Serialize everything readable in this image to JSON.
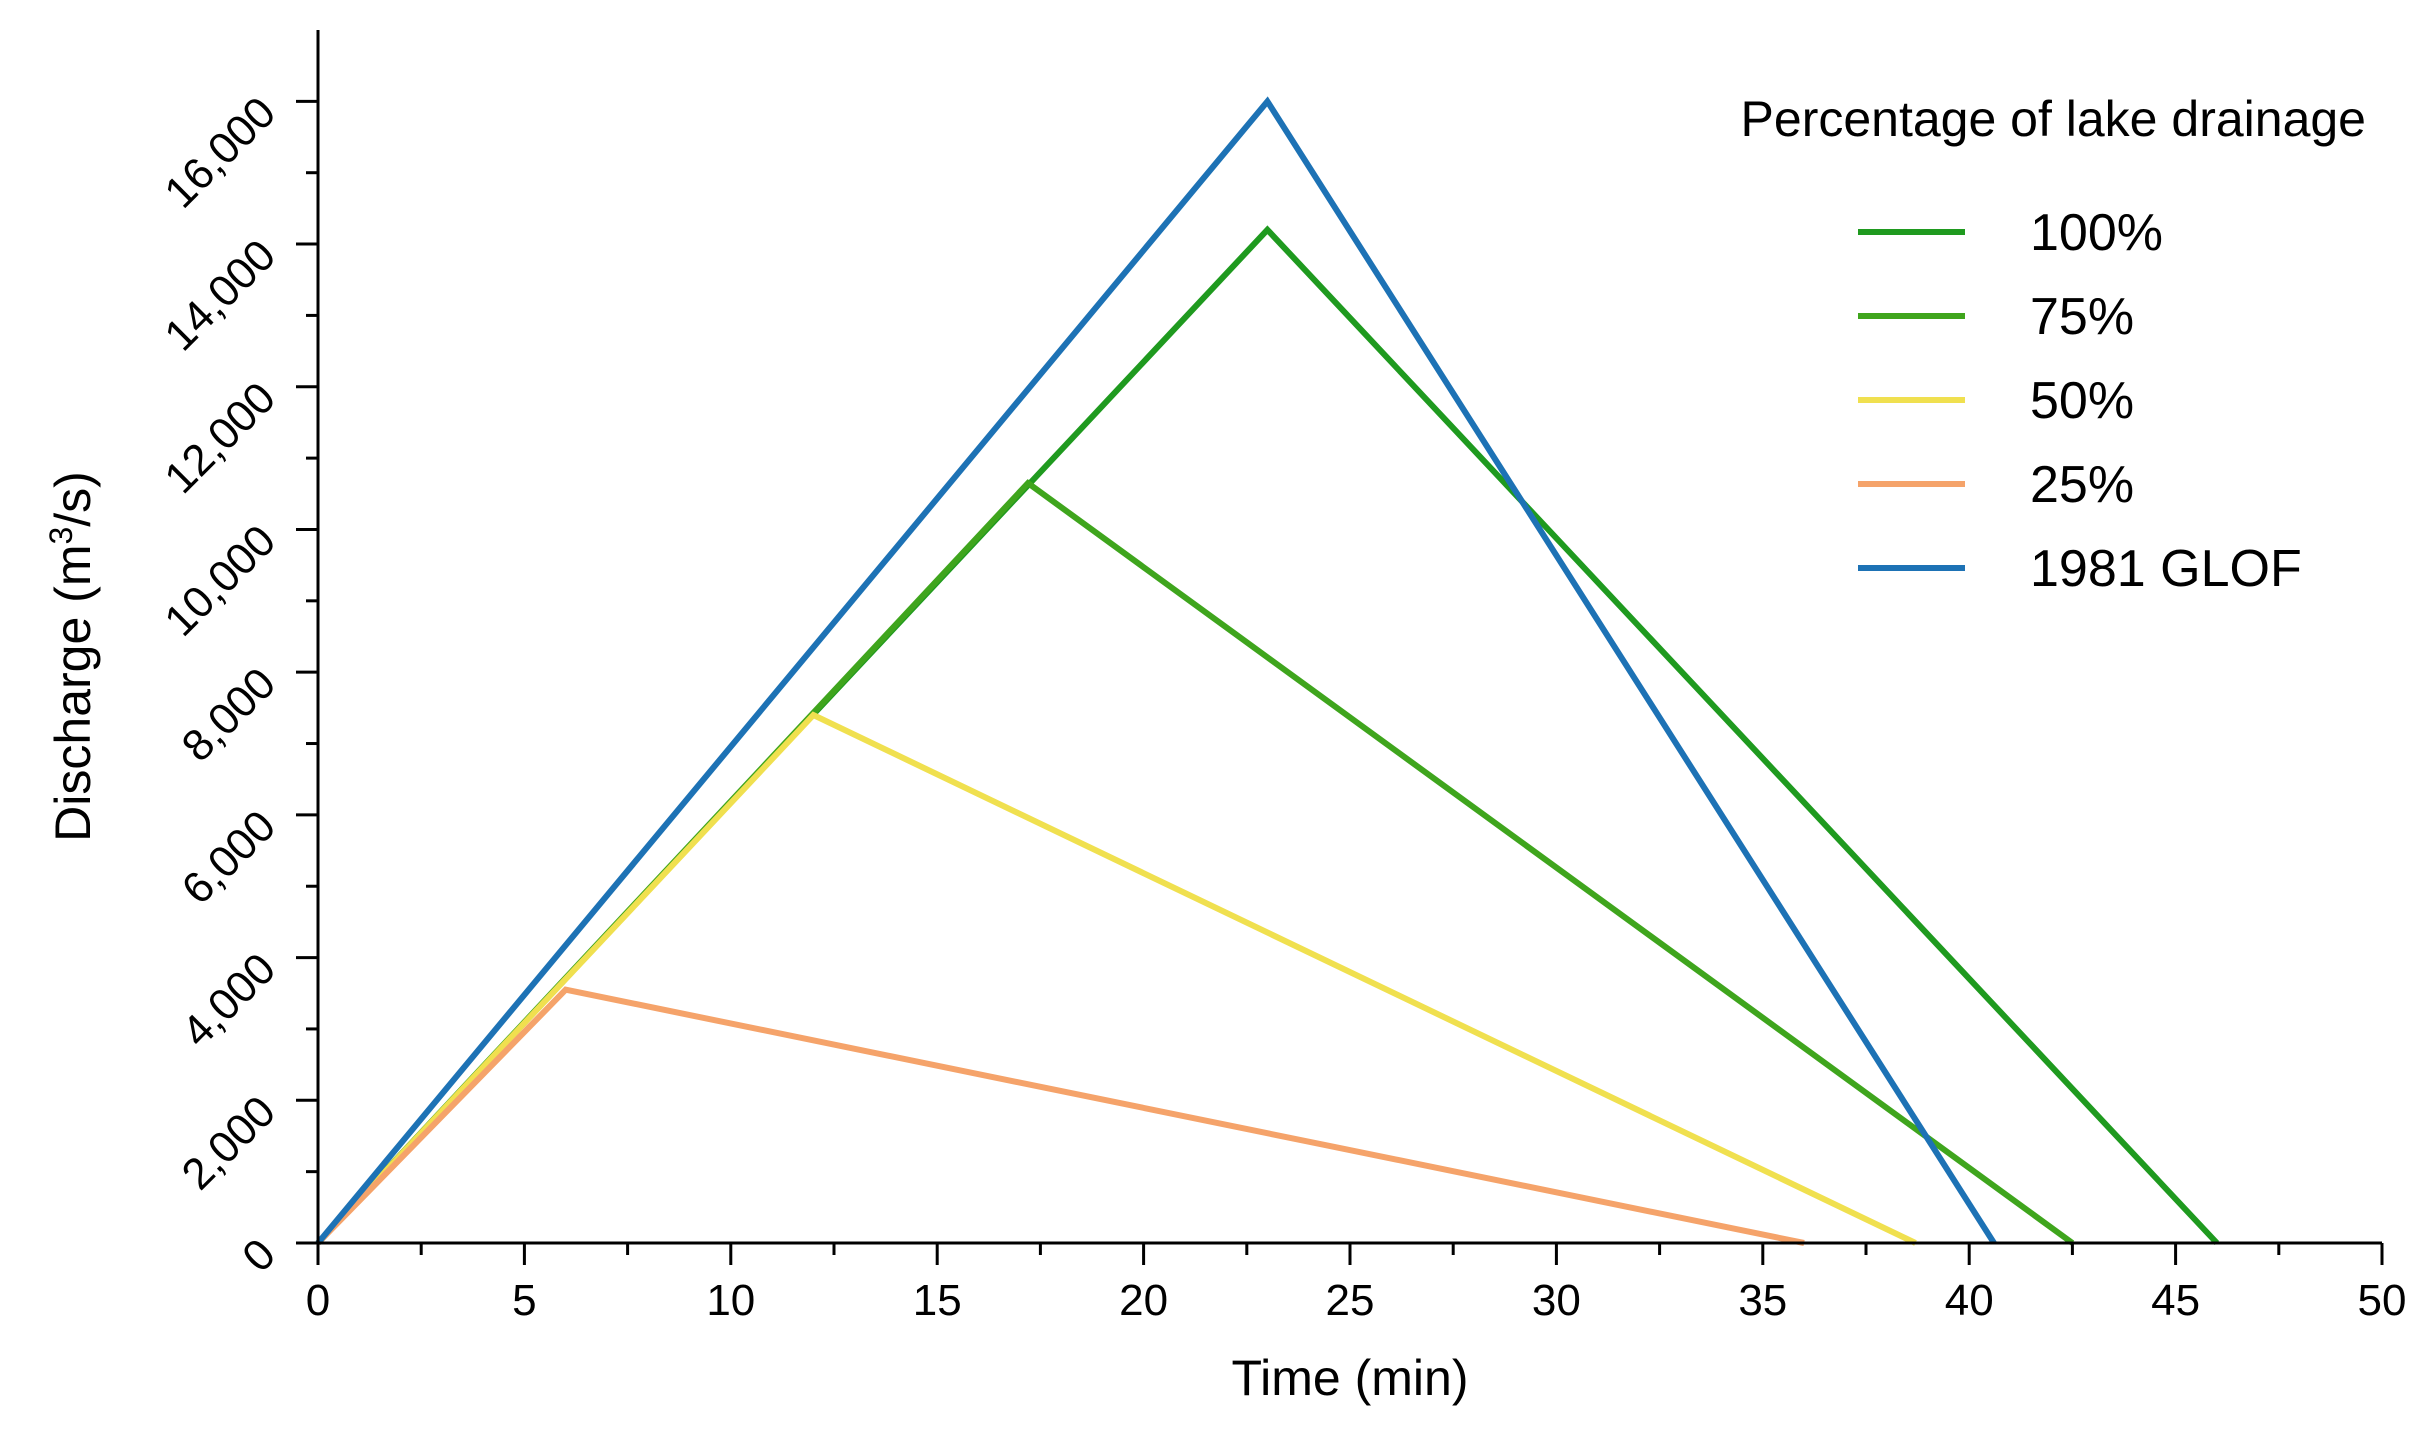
{
  "chart_data": {
    "type": "line",
    "title": "",
    "xlabel": "Time (min)",
    "ylabel_prefix": "Discharge (m",
    "ylabel_sup": "3",
    "ylabel_suffix": "/s)",
    "xlim": [
      0,
      50
    ],
    "ylim": [
      0,
      17000
    ],
    "x_ticks": [
      0,
      5,
      10,
      15,
      20,
      25,
      30,
      35,
      40,
      45,
      50
    ],
    "x_tick_labels": [
      "0",
      "5",
      "10",
      "15",
      "20",
      "25",
      "30",
      "35",
      "40",
      "45",
      "50"
    ],
    "y_ticks": [
      0,
      2000,
      4000,
      6000,
      8000,
      10000,
      12000,
      14000,
      16000
    ],
    "y_tick_labels": [
      "0",
      "2,000",
      "4,000",
      "6,000",
      "8,000",
      "10,000",
      "12,000",
      "14,000",
      "16,000"
    ],
    "grid": false,
    "legend_title": "Percentage of lake drainage",
    "legend_position": "top-right",
    "series": [
      {
        "name": "100%",
        "color": "#1f9a1f",
        "x": [
          0,
          23,
          46
        ],
        "y": [
          0,
          14200,
          0
        ]
      },
      {
        "name": "75%",
        "color": "#3fa51d",
        "x": [
          0,
          17.2,
          42.5
        ],
        "y": [
          0,
          10650,
          0
        ]
      },
      {
        "name": "50%",
        "color": "#f0e04f",
        "x": [
          0,
          12,
          38.7
        ],
        "y": [
          0,
          7400,
          0
        ]
      },
      {
        "name": "25%",
        "color": "#f5a36a",
        "x": [
          0,
          6,
          36
        ],
        "y": [
          0,
          3550,
          0
        ]
      },
      {
        "name": "1981 GLOF",
        "color": "#1d72b5",
        "x": [
          0,
          23,
          40.6
        ],
        "y": [
          0,
          16000,
          0
        ]
      }
    ]
  }
}
